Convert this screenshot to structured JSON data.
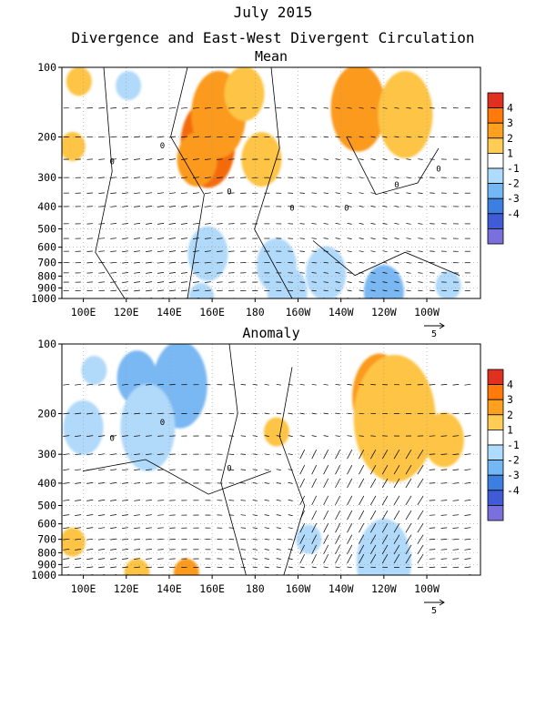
{
  "figure": {
    "title": "July 2015",
    "subtitle": "Divergence and East-West Divergent Circulation"
  },
  "chart_data": [
    {
      "type": "heatmap",
      "panel_title": "Mean",
      "x_tick_labels": [
        "100E",
        "120E",
        "140E",
        "160E",
        "180",
        "160W",
        "140W",
        "120W",
        "100W"
      ],
      "x_tick_lon_east": [
        100,
        120,
        140,
        160,
        180,
        200,
        220,
        240,
        260
      ],
      "x_range_lon_east": [
        90,
        285
      ],
      "y_tick_labels": [
        "100",
        "200",
        "300",
        "400",
        "500",
        "600",
        "700",
        "800",
        "900",
        "1000"
      ],
      "y_tick_hpa": [
        100,
        200,
        300,
        400,
        500,
        600,
        700,
        800,
        900,
        1000
      ],
      "y_scale": "log",
      "y_range_hpa": [
        100,
        1000
      ],
      "reference_vector_label": "5",
      "contour_labels": [
        "0",
        "0",
        "0",
        "0",
        "0",
        "0",
        "0"
      ],
      "blobs": [
        {
          "lon": 158,
          "p": 215,
          "level": 3,
          "size": "large"
        },
        {
          "lon": 163,
          "p": 160,
          "level": 2,
          "size": "large"
        },
        {
          "lon": 153,
          "p": 250,
          "level": 2,
          "size": "medium"
        },
        {
          "lon": 183,
          "p": 250,
          "level": 1,
          "size": "medium"
        },
        {
          "lon": 175,
          "p": 130,
          "level": 1,
          "size": "medium"
        },
        {
          "lon": 228,
          "p": 150,
          "level": 2,
          "size": "large"
        },
        {
          "lon": 250,
          "p": 160,
          "level": 1,
          "size": "large"
        },
        {
          "lon": 98,
          "p": 115,
          "level": 1,
          "size": "small"
        },
        {
          "lon": 95,
          "p": 220,
          "level": 1,
          "size": "small"
        },
        {
          "lon": 121,
          "p": 120,
          "level": -1,
          "size": "small"
        },
        {
          "lon": 158,
          "p": 640,
          "level": -1,
          "size": "medium"
        },
        {
          "lon": 190,
          "p": 720,
          "level": -1,
          "size": "medium"
        },
        {
          "lon": 213,
          "p": 780,
          "level": -1,
          "size": "medium"
        },
        {
          "lon": 240,
          "p": 940,
          "level": -2,
          "size": "medium"
        },
        {
          "lon": 195,
          "p": 950,
          "level": -1,
          "size": "medium"
        },
        {
          "lon": 270,
          "p": 880,
          "level": -1,
          "size": "small"
        },
        {
          "lon": 155,
          "p": 990,
          "level": -1,
          "size": "small"
        }
      ]
    },
    {
      "type": "heatmap",
      "panel_title": "Anomaly",
      "x_tick_labels": [
        "100E",
        "120E",
        "140E",
        "160E",
        "180",
        "160W",
        "140W",
        "120W",
        "100W"
      ],
      "x_tick_lon_east": [
        100,
        120,
        140,
        160,
        180,
        200,
        220,
        240,
        260
      ],
      "x_range_lon_east": [
        90,
        285
      ],
      "y_tick_labels": [
        "100",
        "200",
        "300",
        "400",
        "500",
        "600",
        "700",
        "800",
        "900",
        "1000"
      ],
      "y_tick_hpa": [
        100,
        200,
        300,
        400,
        500,
        600,
        700,
        800,
        900,
        1000
      ],
      "y_scale": "log",
      "y_range_hpa": [
        100,
        1000
      ],
      "reference_vector_label": "5",
      "contour_labels": [
        "0",
        "0",
        "0"
      ],
      "blobs": [
        {
          "lon": 242,
          "p": 180,
          "level": 3,
          "size": "medium"
        },
        {
          "lon": 240,
          "p": 195,
          "level": 4,
          "size": "small"
        },
        {
          "lon": 238,
          "p": 170,
          "level": 2,
          "size": "large"
        },
        {
          "lon": 245,
          "p": 210,
          "level": 1,
          "size": "xlarge"
        },
        {
          "lon": 268,
          "p": 260,
          "level": 1,
          "size": "medium"
        },
        {
          "lon": 190,
          "p": 240,
          "level": 1,
          "size": "small"
        },
        {
          "lon": 95,
          "p": 720,
          "level": 1,
          "size": "small"
        },
        {
          "lon": 148,
          "p": 980,
          "level": 2,
          "size": "small"
        },
        {
          "lon": 125,
          "p": 980,
          "level": 1,
          "size": "small"
        },
        {
          "lon": 148,
          "p": 160,
          "level": -3,
          "size": "medium"
        },
        {
          "lon": 145,
          "p": 150,
          "level": -2,
          "size": "large"
        },
        {
          "lon": 125,
          "p": 140,
          "level": -2,
          "size": "medium"
        },
        {
          "lon": 130,
          "p": 230,
          "level": -1,
          "size": "large"
        },
        {
          "lon": 100,
          "p": 230,
          "level": -1,
          "size": "medium"
        },
        {
          "lon": 105,
          "p": 130,
          "level": -1,
          "size": "small"
        },
        {
          "lon": 240,
          "p": 930,
          "level": -2,
          "size": "medium"
        },
        {
          "lon": 240,
          "p": 880,
          "level": -1,
          "size": "large"
        },
        {
          "lon": 205,
          "p": 700,
          "level": -1,
          "size": "small"
        }
      ]
    }
  ],
  "colorbar": {
    "labels": [
      "4",
      "3",
      "2",
      "1",
      "-1",
      "-2",
      "-3",
      "-4"
    ],
    "colors": [
      "#e03020",
      "#ff7a0a",
      "#ffa020",
      "#ffcc55",
      "#ffffff",
      "#aedcff",
      "#73b8f5",
      "#3d7fe0",
      "#3f5bd6",
      "#7a70dd"
    ]
  },
  "shade_colors": {
    "4": "#dd2c10",
    "3": "#f36a10",
    "2": "#fb9a1a",
    "1": "#fdc445",
    "-1": "#b0d9fa",
    "-2": "#7ab8f3",
    "-3": "#3f7ee4",
    "-4": "#7a70dd"
  }
}
